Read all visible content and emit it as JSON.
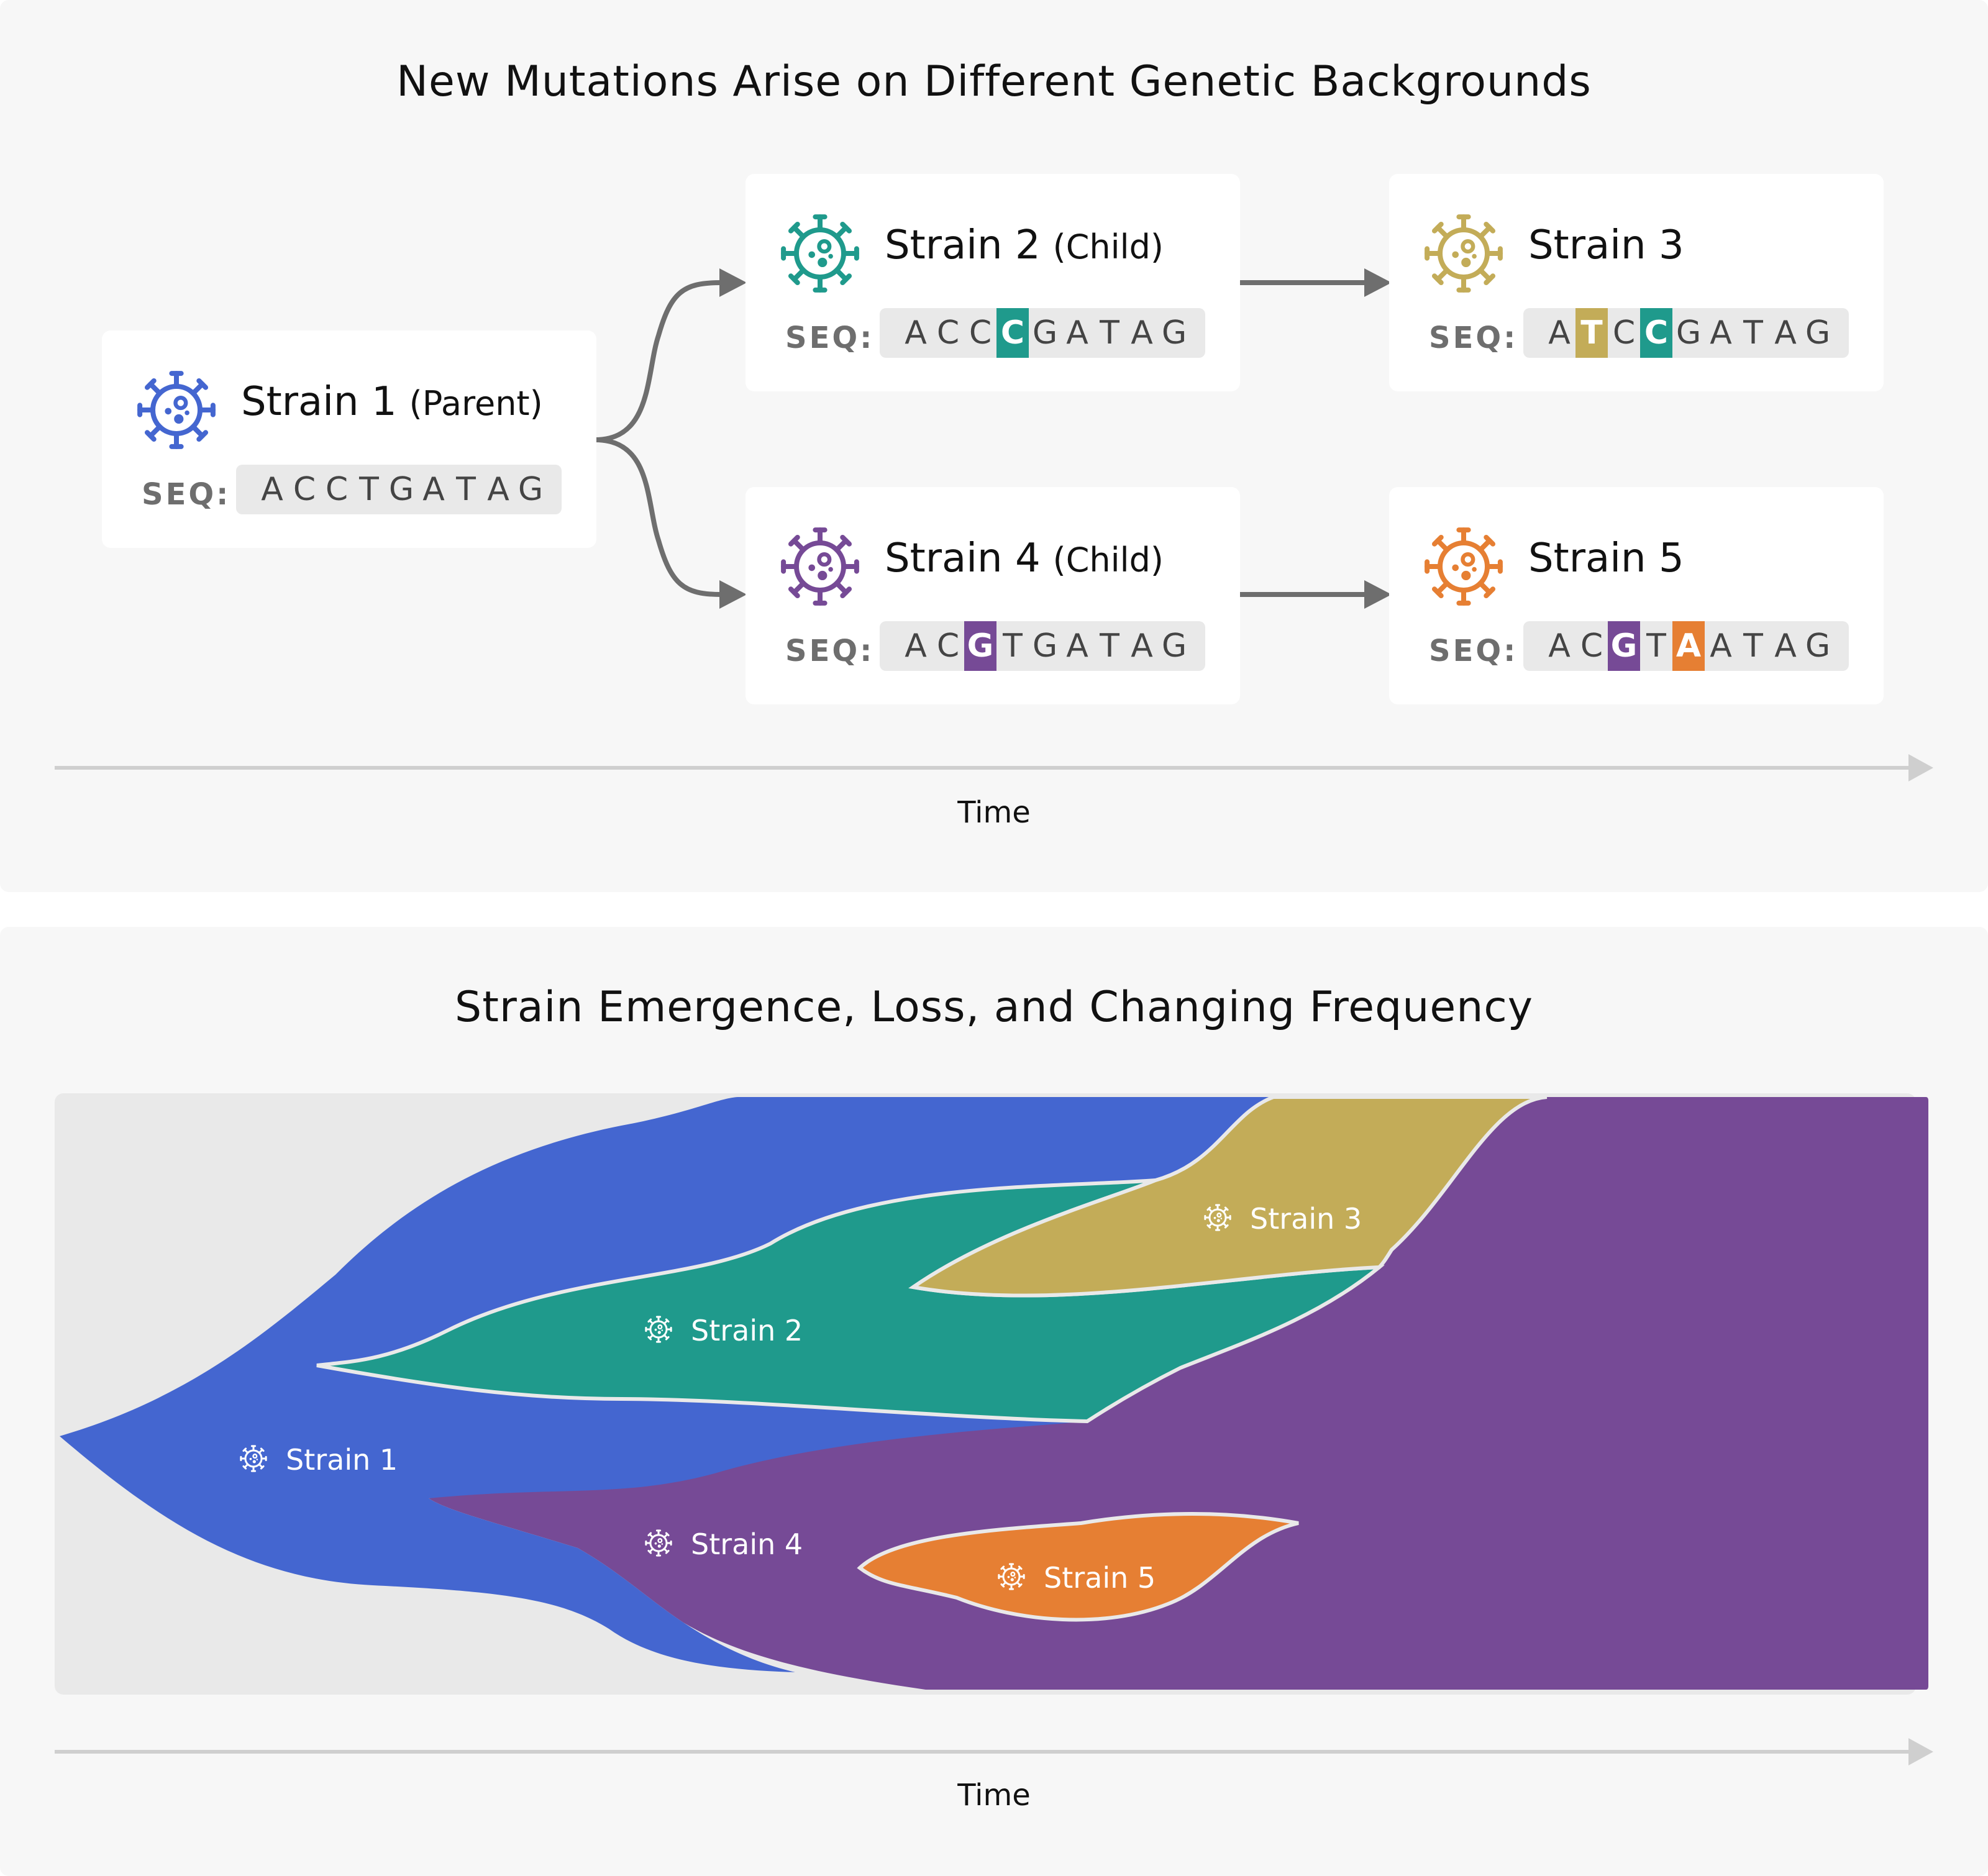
{
  "top_panel": {
    "title": "New Mutations Arise on Different Genetic Backgrounds",
    "seq_label": "SEQ:",
    "time_label": "Time",
    "strains": [
      {
        "name": "Strain 1",
        "role": "(Parent)",
        "color": "#4466d0",
        "sequence": [
          "A",
          "C",
          "C",
          "T",
          "G",
          "A",
          "T",
          "A",
          "G"
        ],
        "mutations": []
      },
      {
        "name": "Strain 2",
        "role": "(Child)",
        "color": "#1f9a8c",
        "sequence": [
          "A",
          "C",
          "C",
          "C",
          "G",
          "A",
          "T",
          "A",
          "G"
        ],
        "mutations": [
          {
            "index": 3,
            "color": "#1f9a8c"
          }
        ]
      },
      {
        "name": "Strain 3",
        "role": "",
        "color": "#c3ac58",
        "sequence": [
          "A",
          "T",
          "C",
          "C",
          "G",
          "A",
          "T",
          "A",
          "G"
        ],
        "mutations": [
          {
            "index": 1,
            "color": "#c3ac58"
          },
          {
            "index": 3,
            "color": "#1f9a8c"
          }
        ]
      },
      {
        "name": "Strain 4",
        "role": "(Child)",
        "color": "#764a96",
        "sequence": [
          "A",
          "C",
          "G",
          "T",
          "G",
          "A",
          "T",
          "A",
          "G"
        ],
        "mutations": [
          {
            "index": 2,
            "color": "#764a96"
          }
        ]
      },
      {
        "name": "Strain 5",
        "role": "",
        "color": "#e67f33",
        "sequence": [
          "A",
          "C",
          "G",
          "T",
          "A",
          "A",
          "T",
          "A",
          "G"
        ],
        "mutations": [
          {
            "index": 2,
            "color": "#764a96"
          },
          {
            "index": 4,
            "color": "#e67f33"
          }
        ]
      }
    ]
  },
  "bottom_panel": {
    "title": "Strain Emergence, Loss, and Changing Frequency",
    "time_label": "Time",
    "streams": [
      {
        "label": "Strain 1",
        "color": "#4466d0"
      },
      {
        "label": "Strain 2",
        "color": "#1f9a8c"
      },
      {
        "label": "Strain 3",
        "color": "#c3ac58"
      },
      {
        "label": "Strain 4",
        "color": "#764a96"
      },
      {
        "label": "Strain 5",
        "color": "#e67f33"
      }
    ]
  }
}
